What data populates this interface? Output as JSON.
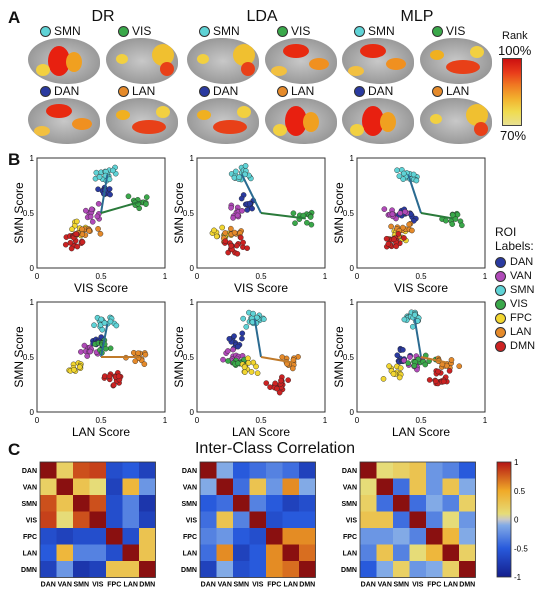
{
  "panels": {
    "a": "A",
    "b": "B",
    "c": "C"
  },
  "methods": [
    "DR",
    "LDA",
    "MLP"
  ],
  "brain_networks": [
    {
      "label": "SMN",
      "color": "#5fd3d6"
    },
    {
      "label": "VIS",
      "color": "#3aa84a"
    },
    {
      "label": "DAN",
      "color": "#2a3aa0"
    },
    {
      "label": "LAN",
      "color": "#e58a2a"
    }
  ],
  "rank_colorbar": {
    "title": "Rank",
    "max_label": "100%",
    "min_label": "70%",
    "colors": [
      "#cc1010",
      "#e83a1a",
      "#f07a22",
      "#f2b12e",
      "#f0dc50",
      "#e8e090"
    ]
  },
  "scatter": {
    "xlabels": [
      "VIS Score",
      "LAN Score"
    ],
    "ylabel": "SMN Score",
    "ticks": [
      "0",
      "0.5",
      "1"
    ],
    "legend_title_1": "ROI",
    "legend_title_2": "Labels:",
    "roi_labels": [
      {
        "label": "DAN",
        "color": "#2a3aa0"
      },
      {
        "label": "VAN",
        "color": "#b04ab8"
      },
      {
        "label": "SMN",
        "color": "#5fd3d6"
      },
      {
        "label": "VIS",
        "color": "#3aa84a"
      },
      {
        "label": "FPC",
        "color": "#f2d630"
      },
      {
        "label": "LAN",
        "color": "#e58a2a"
      },
      {
        "label": "DMN",
        "color": "#cc2222"
      }
    ]
  },
  "icc": {
    "title": "Inter-Class Correlation",
    "labels": [
      "DAN",
      "VAN",
      "SMN",
      "VIS",
      "FPC",
      "LAN",
      "DMN"
    ],
    "colorbar_ticks": [
      "1",
      "0.5",
      "0",
      "-0.5",
      "-1"
    ],
    "matrices": [
      [
        [
          1,
          0.2,
          0.8,
          0.85,
          -0.6,
          -0.5,
          -0.7
        ],
        [
          0.2,
          1,
          0.3,
          0.1,
          -0.7,
          0.4,
          -0.2
        ],
        [
          0.8,
          0.3,
          1,
          0.8,
          -0.6,
          -0.3,
          -0.8
        ],
        [
          0.85,
          0.1,
          0.8,
          1,
          -0.6,
          -0.3,
          -0.7
        ],
        [
          -0.6,
          -0.7,
          -0.6,
          -0.6,
          1,
          -0.6,
          0.3
        ],
        [
          -0.5,
          0.4,
          -0.3,
          -0.3,
          -0.6,
          1,
          0.3
        ],
        [
          -0.7,
          -0.2,
          -0.8,
          -0.7,
          0.3,
          0.3,
          1
        ]
      ],
      [
        [
          1,
          -0.1,
          -0.5,
          -0.4,
          -0.3,
          -0.4,
          -0.7
        ],
        [
          -0.1,
          1,
          -0.4,
          0.3,
          -0.2,
          0.6,
          -0.1
        ],
        [
          -0.5,
          -0.4,
          1,
          -0.3,
          -0.5,
          -0.7,
          -0.6
        ],
        [
          -0.4,
          0.3,
          -0.3,
          1,
          -0.6,
          -0.5,
          -0.5
        ],
        [
          -0.3,
          -0.2,
          -0.5,
          -0.6,
          1,
          0.6,
          0.6
        ],
        [
          -0.4,
          0.6,
          -0.7,
          -0.5,
          0.6,
          1,
          0.7
        ],
        [
          -0.7,
          -0.1,
          -0.6,
          -0.5,
          0.6,
          0.7,
          1
        ]
      ],
      [
        [
          1,
          0.1,
          0.2,
          0.3,
          -0.2,
          -0.3,
          -0.5
        ],
        [
          0.1,
          1,
          -0.4,
          0.3,
          -0.2,
          0.3,
          -0.1
        ],
        [
          0.2,
          -0.4,
          1,
          -0.4,
          -0.1,
          -0.3,
          0.2
        ],
        [
          0.3,
          0.3,
          -0.4,
          1,
          -0.3,
          0.1,
          -0.2
        ],
        [
          -0.2,
          -0.2,
          -0.1,
          -0.3,
          1,
          0.4,
          -0.1
        ],
        [
          -0.3,
          0.3,
          -0.3,
          0.1,
          0.4,
          1,
          0.2
        ],
        [
          -0.5,
          -0.1,
          0.2,
          -0.2,
          -0.1,
          0.2,
          1
        ]
      ]
    ]
  }
}
